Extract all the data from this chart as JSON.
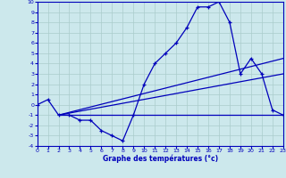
{
  "xlabel": "Graphe des températures (°c)",
  "bg_color": "#cce8ec",
  "line_color": "#0000bb",
  "grid_color": "#aacccc",
  "xlim": [
    0,
    23
  ],
  "ylim": [
    -4,
    10
  ],
  "xticks": [
    0,
    1,
    2,
    3,
    4,
    5,
    6,
    7,
    8,
    9,
    10,
    11,
    12,
    13,
    14,
    15,
    16,
    17,
    18,
    19,
    20,
    21,
    22,
    23
  ],
  "yticks": [
    -4,
    -3,
    -2,
    -1,
    0,
    1,
    2,
    3,
    4,
    5,
    6,
    7,
    8,
    9,
    10
  ],
  "main_x": [
    0,
    1,
    2,
    3,
    4,
    5,
    6,
    7,
    8,
    9,
    10,
    11,
    12,
    13,
    14,
    15,
    16,
    17,
    18,
    19,
    20,
    21,
    22,
    23
  ],
  "main_y": [
    0.0,
    0.5,
    -1.0,
    -1.0,
    -1.5,
    -1.5,
    -2.5,
    -3.0,
    -3.5,
    -1.0,
    2.0,
    4.0,
    5.0,
    6.0,
    7.5,
    9.5,
    9.5,
    10.0,
    8.0,
    3.0,
    4.5,
    3.0,
    -0.5,
    -1.0
  ],
  "line2_x": [
    2,
    23
  ],
  "line2_y": [
    -1.0,
    4.5
  ],
  "line3_x": [
    2,
    23
  ],
  "line3_y": [
    -1.0,
    3.0
  ],
  "line4_x": [
    2,
    23
  ],
  "line4_y": [
    -1.0,
    -1.0
  ]
}
